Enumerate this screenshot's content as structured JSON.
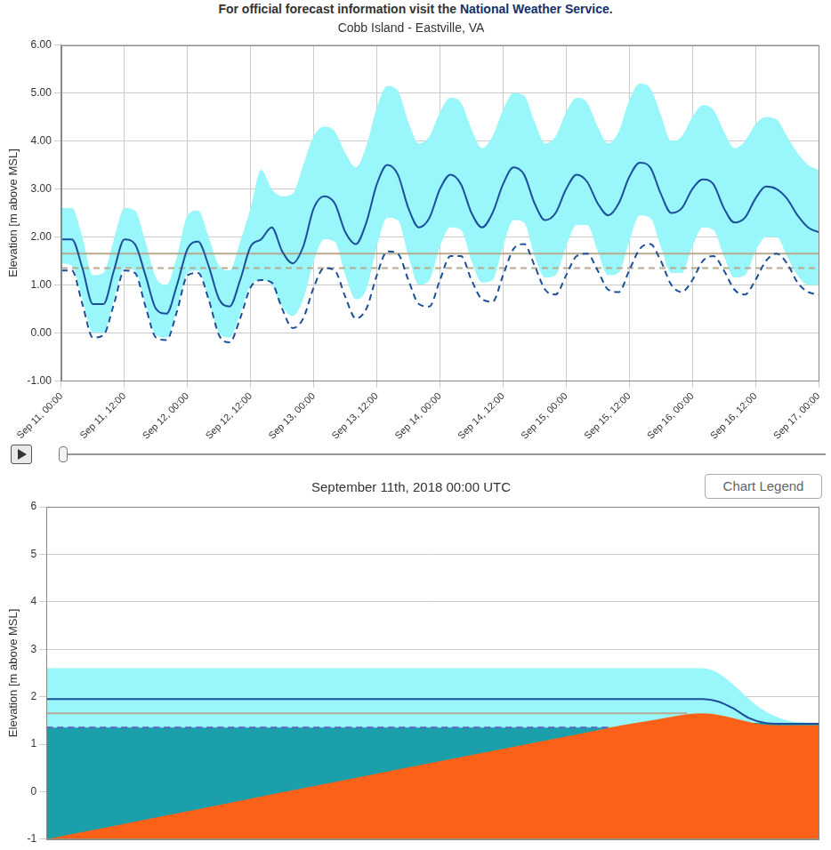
{
  "header": {
    "text": "For official forecast information visit the ",
    "link": "National Weather Service",
    "end": "."
  },
  "controls": {
    "legend_button": "Chart Legend"
  },
  "chart_data": [
    {
      "type": "line",
      "title": "Cobb Island - Eastville, VA",
      "y_label": "Elevation [m above MSL]",
      "categories": [
        "Sep 11, 00:00",
        null,
        null,
        null,
        null,
        null,
        "Sep 11, 12:00",
        null,
        null,
        null,
        null,
        null,
        "Sep 12, 00:00",
        null,
        null,
        null,
        null,
        null,
        "Sep 12, 12:00",
        null,
        null,
        null,
        null,
        null,
        "Sep 13, 00:00",
        null,
        null,
        null,
        null,
        null,
        "Sep 13, 12:00",
        null,
        null,
        null,
        null,
        null,
        "Sep 14, 00:00",
        null,
        null,
        null,
        null,
        null,
        "Sep 14, 12:00",
        null,
        null,
        null,
        null,
        null,
        "Sep 15, 00:00",
        null,
        null,
        null,
        null,
        null,
        "Sep 15, 12:00",
        null,
        null,
        null,
        null,
        null,
        "Sep 16, 00:00",
        null,
        null,
        null,
        null,
        null,
        "Sep 16, 12:00",
        null,
        null,
        null,
        null,
        null,
        "Sep 17, 00:00"
      ],
      "band": {
        "color": "#99f7fb",
        "upper": [
          2.6,
          2.6,
          2.0,
          1.2,
          1.25,
          1.95,
          2.6,
          2.55,
          1.9,
          1.15,
          1.0,
          1.6,
          2.45,
          2.55,
          2.0,
          1.4,
          1.3,
          1.9,
          2.6,
          3.4,
          3.0,
          2.85,
          2.9,
          3.5,
          4.1,
          4.3,
          4.2,
          3.75,
          3.45,
          3.9,
          4.7,
          5.15,
          5.05,
          4.4,
          3.95,
          4.1,
          4.6,
          4.9,
          4.8,
          4.25,
          3.85,
          4.1,
          4.65,
          5.0,
          4.95,
          4.4,
          3.95,
          4.1,
          4.6,
          4.9,
          4.8,
          4.3,
          3.95,
          4.2,
          4.85,
          5.2,
          5.1,
          4.55,
          4.0,
          4.1,
          4.5,
          4.75,
          4.65,
          4.2,
          3.85,
          4.0,
          4.35,
          4.5,
          4.45,
          4.1,
          3.75,
          3.5,
          3.4
        ],
        "lower": [
          1.45,
          1.4,
          0.7,
          0,
          0,
          0.7,
          1.35,
          1.3,
          0.6,
          -0.05,
          -0.1,
          0.5,
          1.25,
          1.3,
          0.7,
          0,
          -0.1,
          0.4,
          1.0,
          1.1,
          1.0,
          0.55,
          0.35,
          0.7,
          1.5,
          1.95,
          1.9,
          1.2,
          0.7,
          0.9,
          1.8,
          2.4,
          2.35,
          1.6,
          1.0,
          1.1,
          1.8,
          2.2,
          2.15,
          1.5,
          1.05,
          1.1,
          1.8,
          2.35,
          2.3,
          1.6,
          1.15,
          1.2,
          1.8,
          2.25,
          2.25,
          1.7,
          1.2,
          1.25,
          1.9,
          2.45,
          2.4,
          1.8,
          1.25,
          1.25,
          1.8,
          2.2,
          2.15,
          1.6,
          1.15,
          1.2,
          1.7,
          2.0,
          2.0,
          1.6,
          1.2,
          1.0,
          1.0
        ]
      },
      "reference_lines": [
        {
          "value": 1.65,
          "color": "#b9aa8f",
          "line_style": "solid"
        },
        {
          "value": 1.35,
          "color": "#b9aa8f",
          "line_style": "dashed"
        }
      ],
      "series": [
        {
          "color": "#1b4f9c",
          "line_style": "dashed",
          "values": [
            1.3,
            1.3,
            0.6,
            -0.1,
            -0.05,
            0.6,
            1.3,
            1.25,
            0.55,
            -0.1,
            -0.15,
            0.45,
            1.2,
            1.25,
            0.7,
            -0.05,
            -0.2,
            0.3,
            0.95,
            1.1,
            1.05,
            0.5,
            0.1,
            0.3,
            0.95,
            1.35,
            1.3,
            0.75,
            0.3,
            0.5,
            1.2,
            1.7,
            1.65,
            1.1,
            0.6,
            0.55,
            1.1,
            1.6,
            1.6,
            1.1,
            0.7,
            0.65,
            1.2,
            1.75,
            1.85,
            1.4,
            0.9,
            0.8,
            1.2,
            1.6,
            1.65,
            1.3,
            0.9,
            0.85,
            1.3,
            1.75,
            1.85,
            1.5,
            1.0,
            0.85,
            1.1,
            1.5,
            1.6,
            1.3,
            0.9,
            0.8,
            1.1,
            1.5,
            1.65,
            1.45,
            1.05,
            0.85,
            0.8
          ]
        },
        {
          "color": "#1b4f9c",
          "line_style": "solid",
          "values": [
            1.95,
            1.95,
            1.35,
            0.6,
            0.6,
            1.3,
            1.95,
            1.85,
            1.2,
            0.5,
            0.4,
            1.0,
            1.75,
            1.9,
            1.4,
            0.7,
            0.55,
            1.1,
            1.8,
            1.95,
            2.2,
            1.7,
            1.45,
            1.8,
            2.6,
            2.85,
            2.7,
            2.1,
            1.85,
            2.3,
            3.1,
            3.5,
            3.3,
            2.6,
            2.2,
            2.4,
            3.0,
            3.3,
            3.1,
            2.5,
            2.2,
            2.5,
            3.1,
            3.45,
            3.3,
            2.7,
            2.35,
            2.5,
            3.0,
            3.3,
            3.15,
            2.7,
            2.45,
            2.7,
            3.25,
            3.55,
            3.45,
            2.9,
            2.5,
            2.6,
            3.0,
            3.2,
            3.1,
            2.6,
            2.3,
            2.4,
            2.8,
            3.05,
            3.0,
            2.8,
            2.45,
            2.2,
            2.1
          ]
        }
      ],
      "ylim": [
        -1,
        6
      ],
      "yticks": [
        {
          "value": -1,
          "label": "-1.00"
        },
        {
          "value": 0,
          "label": "0.00"
        },
        {
          "value": 1,
          "label": "1.00"
        },
        {
          "value": 2,
          "label": "2.00"
        },
        {
          "value": 3,
          "label": "3.00"
        },
        {
          "value": 4,
          "label": "4.00"
        },
        {
          "value": 5,
          "label": "5.00"
        },
        {
          "value": 6,
          "label": "6.00"
        }
      ],
      "grid": true
    },
    {
      "type": "area",
      "title": "September 11th, 2018 00:00 UTC",
      "y_label": "Elevation [m above MSL]",
      "x": [
        0,
        10,
        20,
        30,
        40,
        50,
        60,
        70,
        73,
        76,
        80,
        83,
        85,
        87,
        89,
        91,
        93,
        95,
        97,
        100
      ],
      "series": [
        {
          "type": "area",
          "color": "#99f7fb",
          "values": [
            2.6,
            2.6,
            2.6,
            2.6,
            2.6,
            2.6,
            2.6,
            2.6,
            2.6,
            2.6,
            2.6,
            2.6,
            2.6,
            2.5,
            2.25,
            1.95,
            1.7,
            1.55,
            1.47,
            1.45
          ]
        },
        {
          "type": "area",
          "color": "#1b9faa",
          "values": [
            1.35,
            1.35,
            1.35,
            1.35,
            1.35,
            1.35,
            1.35,
            1.35,
            1.35,
            1.35,
            1.35,
            1.4,
            1.45,
            1.45,
            1.45,
            1.45,
            1.45,
            1.45,
            1.45,
            1.45
          ]
        },
        {
          "type": "area",
          "color": "#fb6118",
          "values": [
            -1,
            -0.68,
            -0.36,
            -0.03,
            0.29,
            0.61,
            0.93,
            1.25,
            1.35,
            1.44,
            1.55,
            1.63,
            1.65,
            1.62,
            1.55,
            1.47,
            1.41,
            1.4,
            1.4,
            1.4
          ]
        },
        {
          "type": "line",
          "color": "#1b4f9c",
          "line_style": "solid",
          "values": [
            1.95,
            1.95,
            1.95,
            1.95,
            1.95,
            1.95,
            1.95,
            1.95,
            1.95,
            1.95,
            1.95,
            1.95,
            1.95,
            1.9,
            1.75,
            1.55,
            1.45,
            1.43,
            1.43,
            1.43
          ]
        },
        {
          "type": "line",
          "color": "#b9aa8f",
          "line_style": "solid",
          "values": [
            1.65,
            1.65,
            1.65,
            1.65,
            1.65,
            1.65,
            1.65,
            1.65,
            1.65,
            1.65,
            1.65,
            1.65,
            null,
            null,
            null,
            null,
            null,
            null,
            null,
            null
          ]
        },
        {
          "type": "line",
          "color": "#5b62c4",
          "line_style": "dashed",
          "values": [
            1.35,
            1.35,
            1.35,
            1.35,
            1.35,
            1.35,
            1.35,
            1.35,
            1.35,
            null,
            null,
            null,
            null,
            null,
            null,
            null,
            null,
            null,
            null,
            null
          ]
        }
      ],
      "xlim": [
        0,
        100
      ],
      "ylim": [
        -1,
        6
      ],
      "yticks": [
        -1,
        0,
        1,
        2,
        3,
        4,
        5,
        6
      ],
      "grid": "y",
      "tick_labels": "y"
    }
  ]
}
